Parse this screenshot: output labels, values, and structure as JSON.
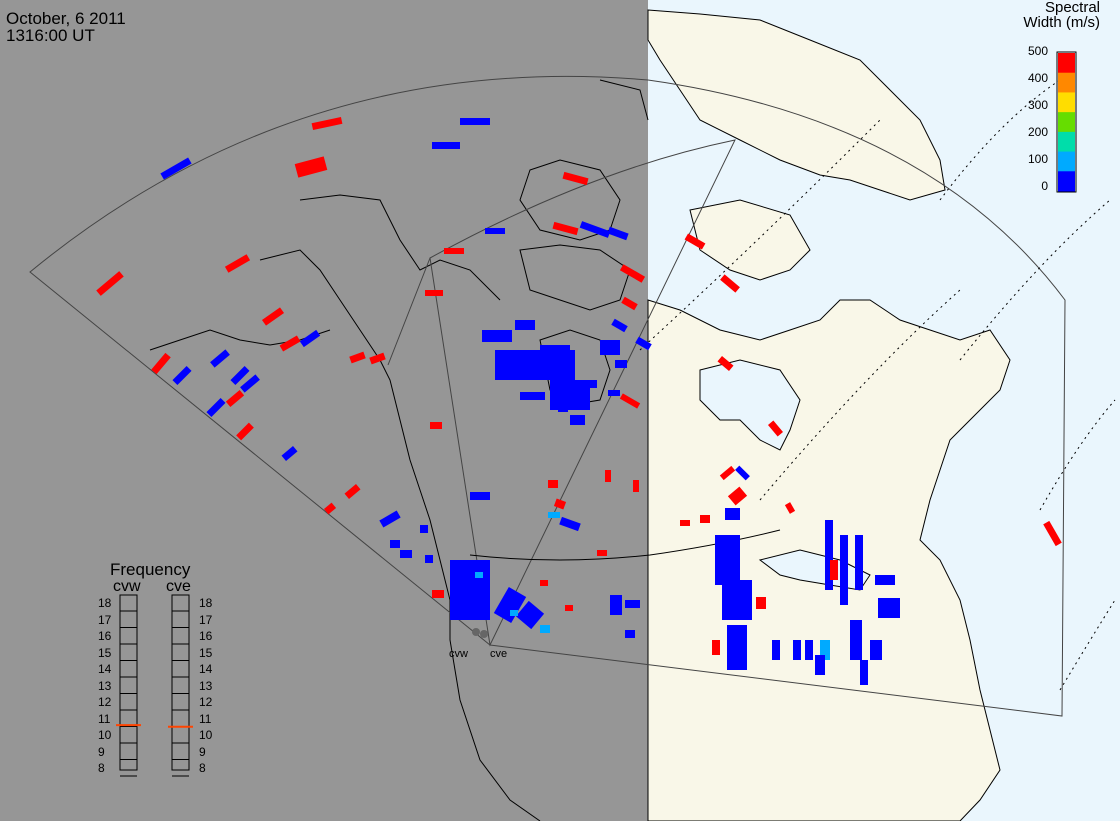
{
  "title": {
    "date": "October, 6 2011",
    "time": "1316:00 UT"
  },
  "colorbar": {
    "title_line1": "Spectral",
    "title_line2": "Width (m/s)",
    "ticks": [
      "500",
      "400",
      "300",
      "200",
      "100",
      "0"
    ],
    "colors": [
      "#ff0000",
      "#ff8800",
      "#ffdd00",
      "#66dd00",
      "#00ddaa",
      "#00aaff",
      "#0000ff"
    ]
  },
  "frequency_panel": {
    "title": "Frequency",
    "left_label": "cvw",
    "right_label": "cve",
    "ticks": [
      "18",
      "17",
      "16",
      "15",
      "14",
      "13",
      "12",
      "11",
      "10",
      "9",
      "8"
    ],
    "cvw_value_mhz": 10.6,
    "cve_value_mhz": 10.5,
    "marker_color": "#ff4400"
  },
  "radars": [
    {
      "name": "cvw"
    },
    {
      "name": "cve"
    }
  ],
  "colors": {
    "night": "#969696",
    "day_land": "#f9f7e8",
    "day_water": "#eaf6fd",
    "low_width": "#0000ff",
    "high_width": "#ff0000"
  }
}
